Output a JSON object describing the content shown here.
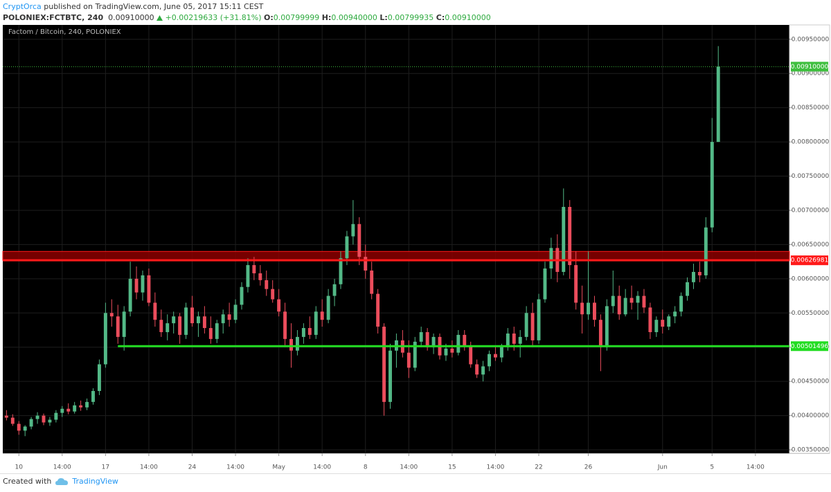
{
  "header": {
    "author": "CryptOrca",
    "published": "published on TradingView.com, June 05, 2017 15:11 CEST",
    "symbol": "POLONIEX:FCTBTC, 240",
    "last": "0.00910000",
    "change": "+0.00219633 (+31.81%)",
    "stats": [
      {
        "label": "O:",
        "value": "0.00799999"
      },
      {
        "label": "H:",
        "value": "0.00940000"
      },
      {
        "label": "L:",
        "value": "0.00799935"
      },
      {
        "label": "C:",
        "value": "0.00910000"
      }
    ]
  },
  "footer": {
    "text": "Created with",
    "brand": "TradingView"
  },
  "chart_data": {
    "type": "candlestick",
    "title": "Factom / Bitcoin, 240, POLONIEX",
    "up_color": "#53b987",
    "down_color": "#eb4d5c",
    "grid": true,
    "xlim": [
      -2.6,
      124.5
    ],
    "ylim": [
      0.00345,
      0.00971
    ],
    "xticks": [
      {
        "value": 0,
        "label": "10"
      },
      {
        "value": 7,
        "label": "14:00"
      },
      {
        "value": 14,
        "label": "17"
      },
      {
        "value": 21,
        "label": "14:00"
      },
      {
        "value": 28,
        "label": "24"
      },
      {
        "value": 35,
        "label": "14:00"
      },
      {
        "value": 42,
        "label": "May"
      },
      {
        "value": 49,
        "label": "14:00"
      },
      {
        "value": 56,
        "label": "8"
      },
      {
        "value": 63,
        "label": "14:00"
      },
      {
        "value": 70,
        "label": "15"
      },
      {
        "value": 77,
        "label": "14:00"
      },
      {
        "value": 84,
        "label": "22"
      },
      {
        "value": 92,
        "label": "26"
      },
      {
        "value": 104,
        "label": "Jun"
      },
      {
        "value": 112,
        "label": "5"
      },
      {
        "value": 119,
        "label": "14:00"
      }
    ],
    "yticks": [
      {
        "value": 0.0035,
        "label": "0.00350000"
      },
      {
        "value": 0.004,
        "label": "0.00400000"
      },
      {
        "value": 0.0045,
        "label": "0.00450000"
      },
      {
        "value": 0.005,
        "label": "0.00500000"
      },
      {
        "value": 0.0055,
        "label": "0.00550000"
      },
      {
        "value": 0.006,
        "label": "0.00600000"
      },
      {
        "value": 0.0065,
        "label": "0.00650000"
      },
      {
        "value": 0.007,
        "label": "0.00700000"
      },
      {
        "value": 0.0075,
        "label": "0.00750000"
      },
      {
        "value": 0.008,
        "label": "0.00800000"
      },
      {
        "value": 0.0085,
        "label": "0.00850000"
      },
      {
        "value": 0.009,
        "label": "0.00900000"
      },
      {
        "value": 0.0095,
        "label": "0.00950000"
      }
    ],
    "zone": {
      "ylim": [
        0.00626981,
        0.0064
      ],
      "color": "#8b0000"
    },
    "levels": [
      {
        "value": 0.00626981,
        "label": "0.00626981",
        "color": "#ff1a1a",
        "from_x": -2.6
      },
      {
        "value": 0.00501496,
        "label": "0.00501496",
        "color": "#22dd22",
        "from_x": 16
      }
    ],
    "last_price": {
      "value": 0.0091,
      "label": "0.00910000",
      "color": "#3fbf3f"
    },
    "x": [
      -2,
      -1,
      0,
      1,
      2,
      3,
      4,
      5,
      6,
      7,
      8,
      9,
      10,
      11,
      12,
      13,
      14,
      15,
      16,
      17,
      18,
      19,
      20,
      21,
      22,
      23,
      24,
      25,
      26,
      27,
      28,
      29,
      30,
      31,
      32,
      33,
      34,
      35,
      36,
      37,
      38,
      39,
      40,
      41,
      42,
      43,
      44,
      45,
      46,
      47,
      48,
      49,
      50,
      51,
      52,
      53,
      54,
      55,
      56,
      57,
      58,
      59,
      60,
      61,
      62,
      63,
      64,
      65,
      66,
      67,
      68,
      69,
      70,
      71,
      72,
      73,
      74,
      75,
      76,
      77,
      78,
      79,
      80,
      81,
      82,
      83,
      84,
      85,
      86,
      87,
      88,
      89,
      90,
      91,
      92,
      93,
      94,
      95,
      96,
      97,
      98,
      99,
      100,
      101,
      102,
      103,
      104,
      105,
      106,
      107,
      108,
      109,
      110,
      111,
      112,
      113
    ],
    "ohlc": [
      [
        0.004,
        0.00408,
        0.00393,
        0.00397
      ],
      [
        0.00397,
        0.00402,
        0.00385,
        0.00388
      ],
      [
        0.00388,
        0.00392,
        0.00372,
        0.00378
      ],
      [
        0.00378,
        0.00386,
        0.0037,
        0.00384
      ],
      [
        0.00384,
        0.00398,
        0.0038,
        0.00395
      ],
      [
        0.00395,
        0.00405,
        0.00388,
        0.004
      ],
      [
        0.004,
        0.00403,
        0.00386,
        0.0039
      ],
      [
        0.0039,
        0.00398,
        0.00385,
        0.00394
      ],
      [
        0.00394,
        0.00408,
        0.0039,
        0.00404
      ],
      [
        0.00404,
        0.00414,
        0.00398,
        0.0041
      ],
      [
        0.0041,
        0.00418,
        0.00402,
        0.00406
      ],
      [
        0.00406,
        0.0042,
        0.00403,
        0.00415
      ],
      [
        0.00415,
        0.00422,
        0.00407,
        0.00412
      ],
      [
        0.00412,
        0.00425,
        0.00408,
        0.0042
      ],
      [
        0.0042,
        0.0044,
        0.00416,
        0.00436
      ],
      [
        0.00436,
        0.00482,
        0.0043,
        0.00475
      ],
      [
        0.00475,
        0.00565,
        0.0047,
        0.0055
      ],
      [
        0.0055,
        0.0057,
        0.0053,
        0.00545
      ],
      [
        0.00545,
        0.00562,
        0.00505,
        0.00515
      ],
      [
        0.00515,
        0.0056,
        0.00495,
        0.00552
      ],
      [
        0.00552,
        0.00625,
        0.00545,
        0.006
      ],
      [
        0.006,
        0.00618,
        0.0057,
        0.0058
      ],
      [
        0.0058,
        0.00612,
        0.00568,
        0.00605
      ],
      [
        0.00605,
        0.00615,
        0.0056,
        0.00565
      ],
      [
        0.00565,
        0.0058,
        0.0053,
        0.0054
      ],
      [
        0.0054,
        0.00555,
        0.00515,
        0.00522
      ],
      [
        0.00522,
        0.00548,
        0.0051,
        0.00535
      ],
      [
        0.00535,
        0.00552,
        0.0052,
        0.00545
      ],
      [
        0.00545,
        0.0055,
        0.00505,
        0.00518
      ],
      [
        0.00518,
        0.00565,
        0.00512,
        0.00558
      ],
      [
        0.00558,
        0.00575,
        0.0053,
        0.00535
      ],
      [
        0.00535,
        0.00552,
        0.00515,
        0.00545
      ],
      [
        0.00545,
        0.0056,
        0.0052,
        0.00528
      ],
      [
        0.00528,
        0.00545,
        0.00505,
        0.00512
      ],
      [
        0.00512,
        0.0054,
        0.00506,
        0.00535
      ],
      [
        0.00535,
        0.00555,
        0.0052,
        0.00548
      ],
      [
        0.00548,
        0.00565,
        0.0053,
        0.0054
      ],
      [
        0.0054,
        0.0057,
        0.00535,
        0.00562
      ],
      [
        0.00562,
        0.00595,
        0.00555,
        0.00588
      ],
      [
        0.00588,
        0.0063,
        0.0058,
        0.0062
      ],
      [
        0.0062,
        0.00632,
        0.00598,
        0.00608
      ],
      [
        0.00608,
        0.0062,
        0.0059,
        0.00598
      ],
      [
        0.00598,
        0.00612,
        0.00575,
        0.00585
      ],
      [
        0.00585,
        0.00598,
        0.00565,
        0.0057
      ],
      [
        0.0057,
        0.00585,
        0.00545,
        0.00552
      ],
      [
        0.00552,
        0.00565,
        0.005,
        0.00512
      ],
      [
        0.00512,
        0.00535,
        0.0047,
        0.00495
      ],
      [
        0.00495,
        0.00525,
        0.00488,
        0.00515
      ],
      [
        0.00515,
        0.00535,
        0.00505,
        0.00528
      ],
      [
        0.00528,
        0.00545,
        0.00512,
        0.00518
      ],
      [
        0.00518,
        0.0056,
        0.00512,
        0.00552
      ],
      [
        0.00552,
        0.0057,
        0.0053,
        0.0054
      ],
      [
        0.0054,
        0.00585,
        0.00535,
        0.00575
      ],
      [
        0.00575,
        0.006,
        0.0056,
        0.00592
      ],
      [
        0.00592,
        0.0064,
        0.00585,
        0.0063
      ],
      [
        0.0063,
        0.0067,
        0.0062,
        0.00662
      ],
      [
        0.00662,
        0.00715,
        0.0065,
        0.0068
      ],
      [
        0.0068,
        0.0069,
        0.0062,
        0.00632
      ],
      [
        0.00632,
        0.0065,
        0.006,
        0.00612
      ],
      [
        0.00612,
        0.00625,
        0.0057,
        0.00578
      ],
      [
        0.00578,
        0.00585,
        0.0052,
        0.0053
      ],
      [
        0.0053,
        0.00535,
        0.004,
        0.0042
      ],
      [
        0.0042,
        0.00505,
        0.0041,
        0.00495
      ],
      [
        0.00495,
        0.0052,
        0.0047,
        0.0051
      ],
      [
        0.0051,
        0.00525,
        0.00485,
        0.00492
      ],
      [
        0.00492,
        0.0051,
        0.00455,
        0.0047
      ],
      [
        0.0047,
        0.00515,
        0.00465,
        0.00508
      ],
      [
        0.00508,
        0.0053,
        0.005,
        0.00522
      ],
      [
        0.00522,
        0.00528,
        0.00495,
        0.005
      ],
      [
        0.005,
        0.0052,
        0.0049,
        0.00515
      ],
      [
        0.00515,
        0.0052,
        0.00482,
        0.00488
      ],
      [
        0.00488,
        0.00505,
        0.0048,
        0.00498
      ],
      [
        0.00498,
        0.0051,
        0.00485,
        0.00492
      ],
      [
        0.00492,
        0.00525,
        0.00488,
        0.00518
      ],
      [
        0.00518,
        0.00525,
        0.00495,
        0.00502
      ],
      [
        0.00502,
        0.00508,
        0.0047,
        0.00475
      ],
      [
        0.00475,
        0.00482,
        0.00455,
        0.0046
      ],
      [
        0.0046,
        0.0048,
        0.0045,
        0.00472
      ],
      [
        0.00472,
        0.00495,
        0.00465,
        0.0049
      ],
      [
        0.0049,
        0.00502,
        0.0048,
        0.00485
      ],
      [
        0.00485,
        0.00505,
        0.00478,
        0.005
      ],
      [
        0.005,
        0.00528,
        0.00495,
        0.0052
      ],
      [
        0.0052,
        0.0053,
        0.00495,
        0.00505
      ],
      [
        0.00505,
        0.00525,
        0.00485,
        0.00515
      ],
      [
        0.00515,
        0.0056,
        0.0051,
        0.0055
      ],
      [
        0.0055,
        0.00565,
        0.005,
        0.0051
      ],
      [
        0.0051,
        0.00578,
        0.00505,
        0.0057
      ],
      [
        0.0057,
        0.00625,
        0.00565,
        0.00615
      ],
      [
        0.00615,
        0.0066,
        0.006,
        0.00645
      ],
      [
        0.00645,
        0.00665,
        0.00595,
        0.0061
      ],
      [
        0.0061,
        0.00732,
        0.00605,
        0.00705
      ],
      [
        0.00705,
        0.00715,
        0.006,
        0.0062
      ],
      [
        0.0062,
        0.0064,
        0.00555,
        0.00565
      ],
      [
        0.00565,
        0.0059,
        0.0052,
        0.00548
      ],
      [
        0.00548,
        0.0064,
        0.0054,
        0.00565
      ],
      [
        0.00565,
        0.00575,
        0.0053,
        0.0054
      ],
      [
        0.0054,
        0.00548,
        0.00465,
        0.005
      ],
      [
        0.005,
        0.0057,
        0.00495,
        0.0056
      ],
      [
        0.0056,
        0.00612,
        0.0055,
        0.00575
      ],
      [
        0.00575,
        0.0059,
        0.0054,
        0.00548
      ],
      [
        0.00548,
        0.00585,
        0.00545,
        0.00572
      ],
      [
        0.00572,
        0.0059,
        0.00555,
        0.00565
      ],
      [
        0.00565,
        0.00582,
        0.0054,
        0.00575
      ],
      [
        0.00575,
        0.00585,
        0.0055,
        0.00558
      ],
      [
        0.00558,
        0.00565,
        0.00512,
        0.00522
      ],
      [
        0.00522,
        0.00545,
        0.00515,
        0.0054
      ],
      [
        0.0054,
        0.00555,
        0.0052,
        0.0053
      ],
      [
        0.0053,
        0.00548,
        0.00525,
        0.00545
      ],
      [
        0.00545,
        0.0056,
        0.00535,
        0.00552
      ],
      [
        0.00552,
        0.0058,
        0.00545,
        0.00575
      ],
      [
        0.00575,
        0.00602,
        0.00568,
        0.00595
      ],
      [
        0.00595,
        0.00622,
        0.00585,
        0.0061
      ],
      [
        0.0061,
        0.00625,
        0.00595,
        0.00605
      ],
      [
        0.00605,
        0.0069,
        0.006,
        0.00675
      ],
      [
        0.00675,
        0.00835,
        0.00668,
        0.008
      ],
      [
        0.00799999,
        0.0094,
        0.00799935,
        0.0091
      ]
    ]
  }
}
